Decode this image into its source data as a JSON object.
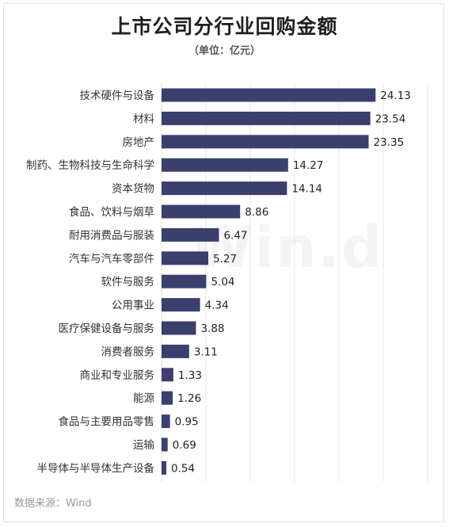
{
  "header": {
    "title": "上市公司分行业回购金额",
    "unit": "（单位：亿元）"
  },
  "footer": {
    "source": "数据来源：Wind"
  },
  "watermark": {
    "text": "Win.d"
  },
  "colors": {
    "bar": "#3a3f6e",
    "grid": "#e2e2e2",
    "label": "#333333",
    "value": "#222222"
  },
  "chart_data": {
    "type": "bar",
    "orientation": "horizontal",
    "categories": [
      "技术硬件与设备",
      "材料",
      "房地产",
      "制药、生物科技与生命科学",
      "资本货物",
      "食品、饮料与烟草",
      "耐用消费品与服装",
      "汽车与汽车零部件",
      "软件与服务",
      "公用事业",
      "医疗保健设备与服务",
      "消费者服务",
      "商业和专业服务",
      "能源",
      "食品与主要用品零售",
      "运输",
      "半导体与半导体生产设备"
    ],
    "values": [
      24.13,
      23.54,
      23.35,
      14.27,
      14.14,
      8.86,
      6.47,
      5.27,
      5.04,
      4.34,
      3.88,
      3.11,
      1.33,
      1.26,
      0.95,
      0.69,
      0.54
    ],
    "title": "上市公司分行业回购金额",
    "unit": "亿元",
    "xlim": [
      0,
      30
    ],
    "grid": true,
    "legend": "none"
  }
}
